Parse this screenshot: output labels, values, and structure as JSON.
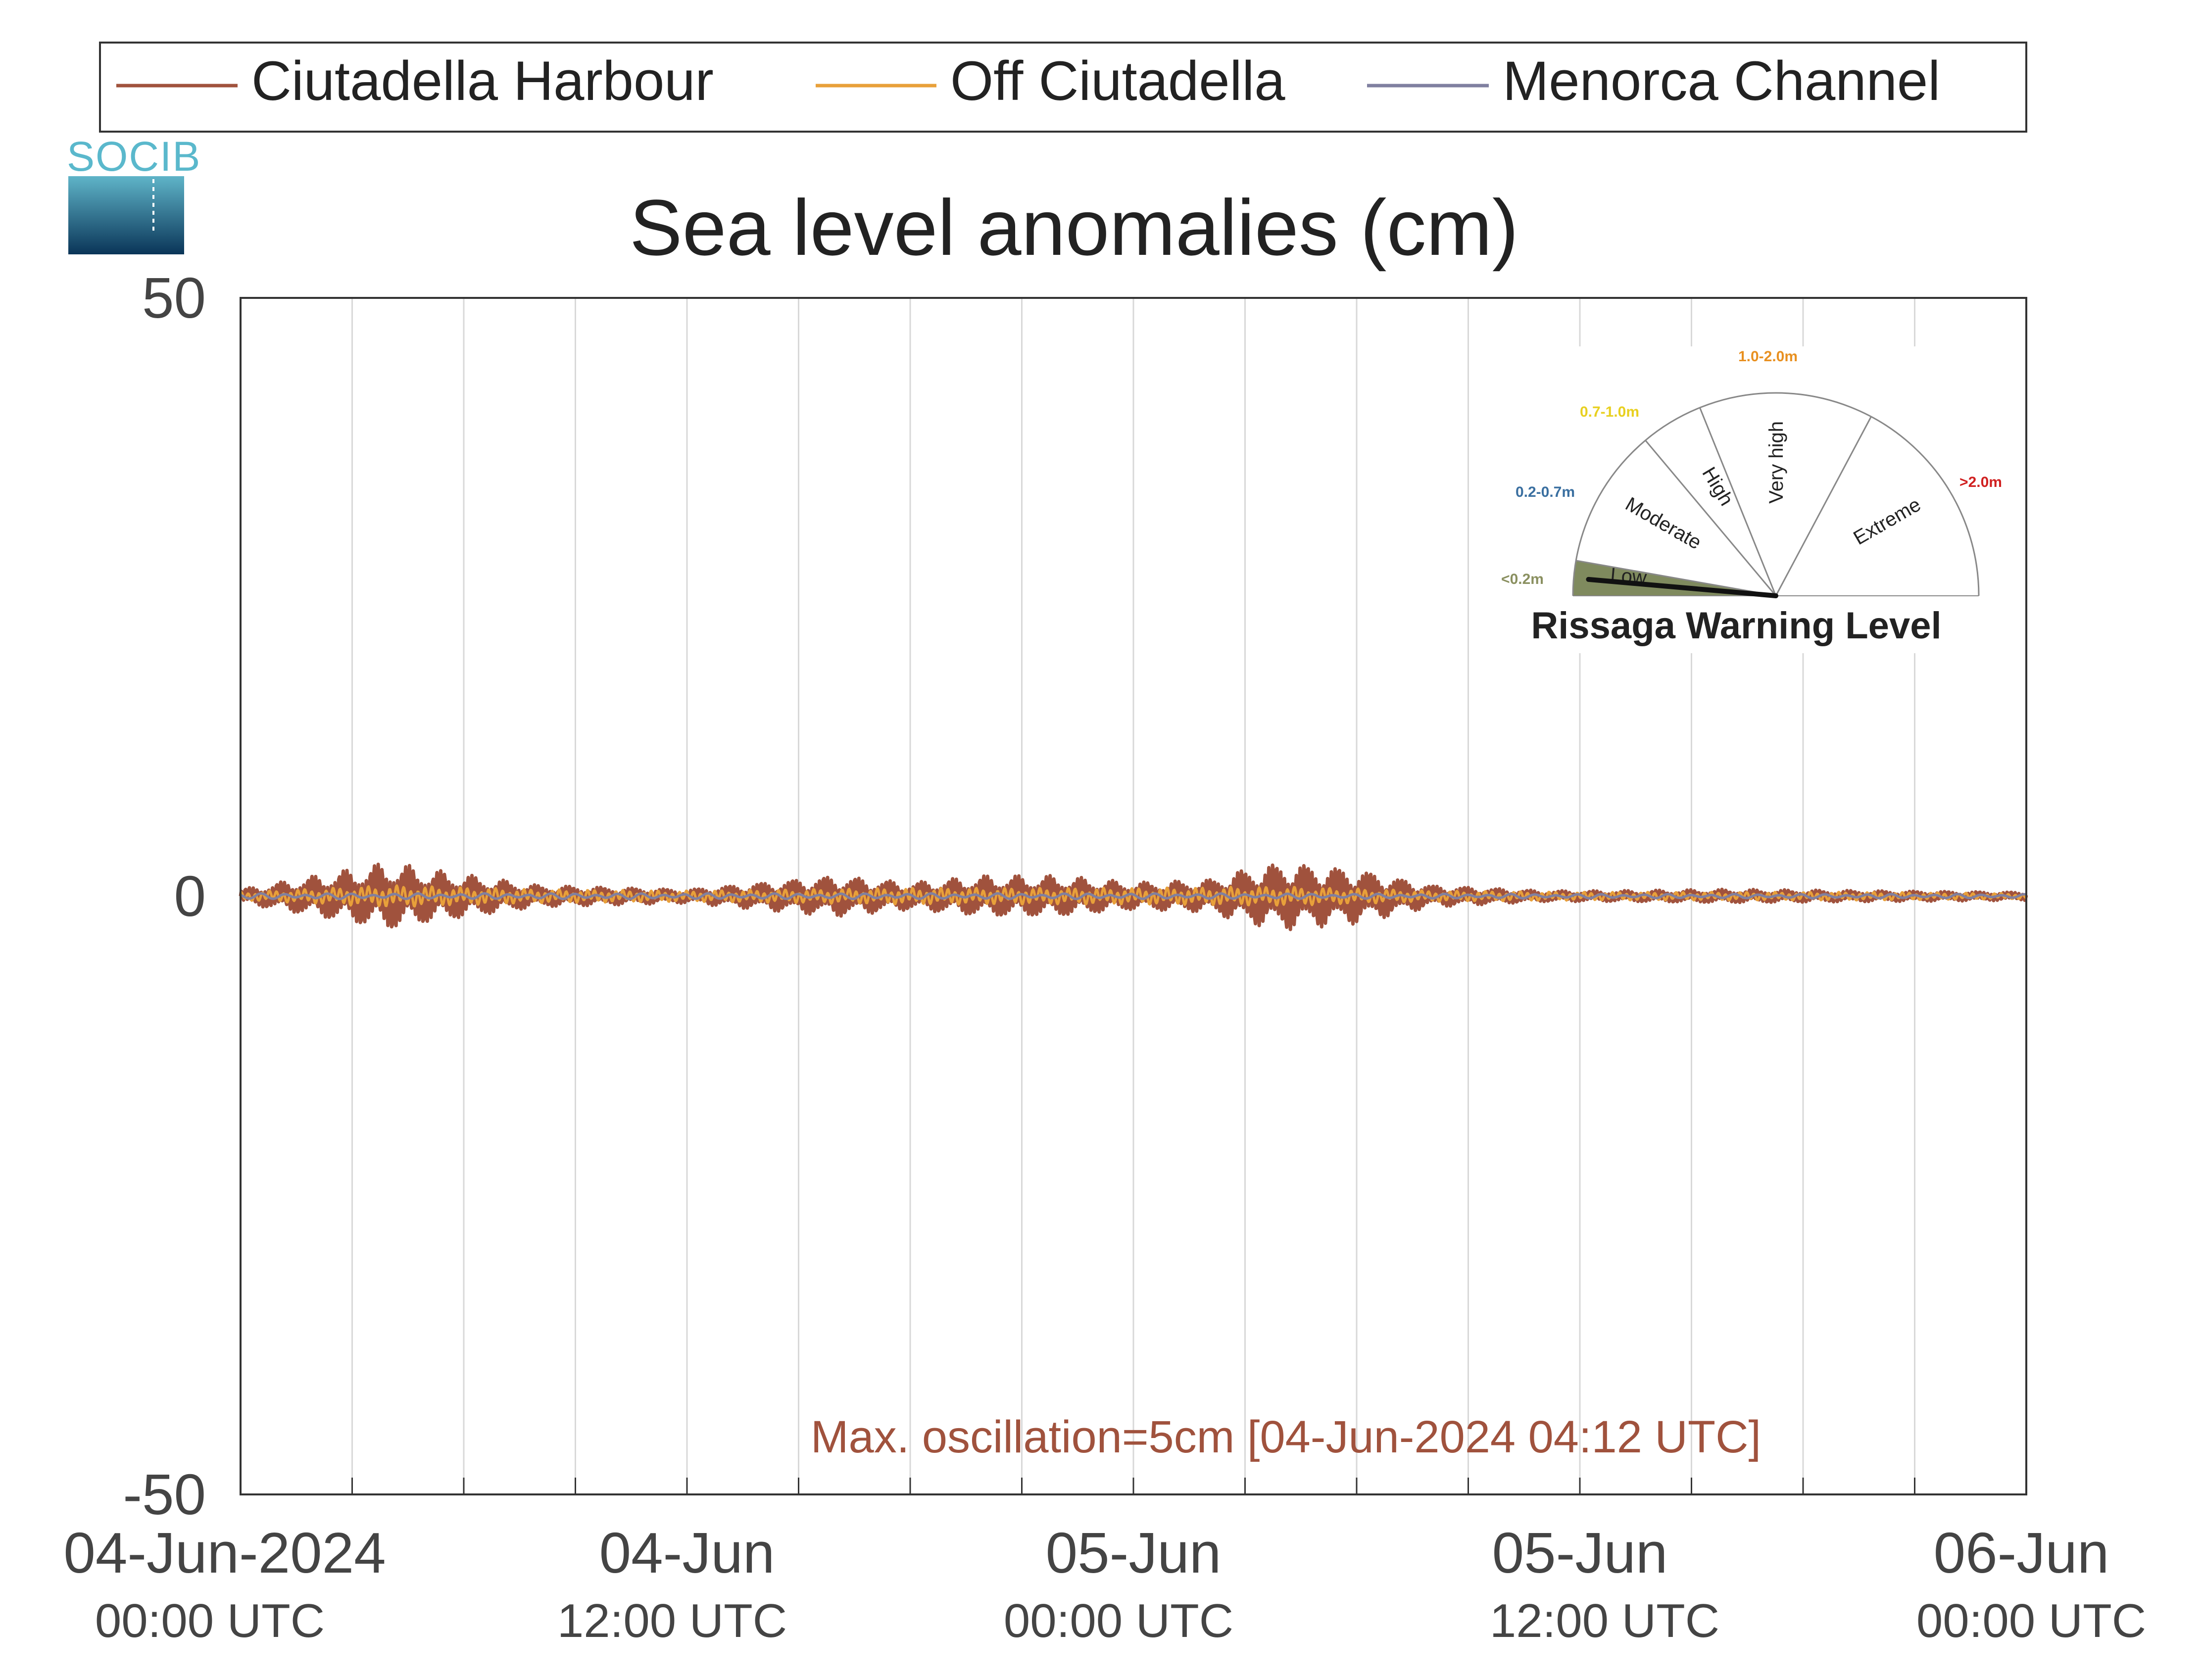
{
  "logo": {
    "text": "SOCIB"
  },
  "chart_data": {
    "type": "line",
    "title": "Sea level anomalies (cm)",
    "xlabel": "",
    "ylabel": "",
    "ylim": [
      -50,
      50
    ],
    "yticks": [
      50,
      0,
      -50
    ],
    "ytick_labels": [
      "50",
      "0",
      "-50"
    ],
    "x_range_hours": [
      0,
      48
    ],
    "xticks": [
      {
        "hour": 0,
        "date": "04-Jun-2024",
        "time": "00:00 UTC"
      },
      {
        "hour": 12,
        "date": "04-Jun",
        "time": "12:00 UTC"
      },
      {
        "hour": 24,
        "date": "05-Jun",
        "time": "00:00 UTC"
      },
      {
        "hour": 36,
        "date": "05-Jun",
        "time": "12:00 UTC"
      },
      {
        "hour": 48,
        "date": "06-Jun",
        "time": "00:00 UTC"
      }
    ],
    "grid": true,
    "legend_position": "top",
    "series": [
      {
        "name": "Ciutadella Harbour",
        "color": "#a0523d",
        "envelope_hours": [
          0,
          2,
          4,
          5,
          8,
          12,
          14,
          16,
          18,
          20,
          22,
          24,
          26,
          27,
          28,
          30,
          32,
          35,
          37,
          40,
          44,
          48
        ],
        "envelope_amplitude_cm": [
          0.5,
          1.5,
          2.5,
          2,
          0.8,
          0.5,
          1,
          1.5,
          1,
          1.5,
          1.5,
          1,
          1.2,
          2,
          2.5,
          2,
          0.8,
          0.4,
          0.4,
          0.5,
          0.4,
          0.3
        ]
      },
      {
        "name": "Off Ciutadella",
        "color": "#e8a03a",
        "envelope_hours": [
          0,
          4,
          8,
          12,
          18,
          24,
          28,
          32,
          36,
          40,
          44,
          48
        ],
        "envelope_amplitude_cm": [
          0.3,
          0.8,
          0.5,
          0.4,
          0.6,
          0.6,
          0.7,
          0.4,
          0.3,
          0.3,
          0.3,
          0.2
        ]
      },
      {
        "name": "Menorca Channel",
        "color": "#8080a0",
        "envelope_hours": [
          0,
          12,
          24,
          36,
          48
        ],
        "envelope_amplitude_cm": [
          0.2,
          0.2,
          0.2,
          0.15,
          0.15
        ]
      }
    ],
    "annotation": "Max. oscillation=5cm [04-Jun-2024 04:12 UTC]",
    "annotation_color": "#a0523d",
    "warning_gauge": {
      "title": "Rissaga Warning Level",
      "active_level": "Low",
      "levels": [
        {
          "name": "Low",
          "range": "<0.2m",
          "range_color": "#8a9060"
        },
        {
          "name": "Moderate",
          "range": "0.2-0.7m",
          "range_color": "#3a6fa0"
        },
        {
          "name": "High",
          "range": "0.7-1.0m",
          "range_color": "#e8d020"
        },
        {
          "name": "Very high",
          "range": "1.0-2.0m",
          "range_color": "#e89020"
        },
        {
          "name": "Extreme",
          "range": ">2.0m",
          "range_color": "#d02020"
        }
      ],
      "active_fill": "#7f8a5e"
    }
  }
}
